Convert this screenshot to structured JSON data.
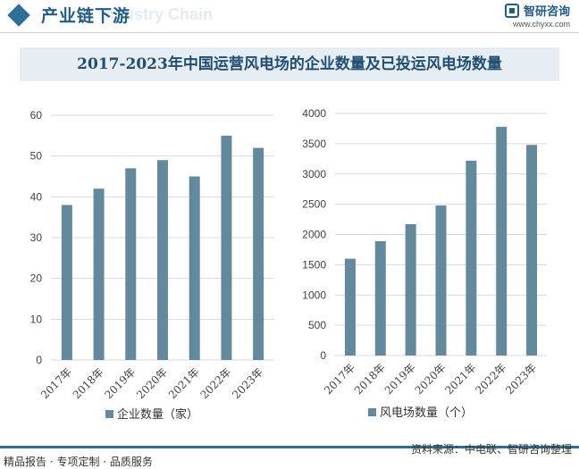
{
  "header": {
    "section_title": "产业链下游",
    "ghost_text": "Industry Chain",
    "brand_name": "智研咨询",
    "brand_url": "www.chyxx.com"
  },
  "chart_title": "2017-2023年中国运营风电场的企业数量及已投运风电场数量",
  "colors": {
    "bar": "#62899c",
    "accent": "#2e6f97",
    "title_bg": "#e6eef4"
  },
  "chart_data": [
    {
      "type": "bar",
      "categories": [
        "2017年",
        "2018年",
        "2019年",
        "2020年",
        "2021年",
        "2022年",
        "2023年"
      ],
      "series": [
        {
          "name": "企业数量（家）",
          "values": [
            38,
            42,
            47,
            49,
            45,
            55,
            52
          ]
        }
      ],
      "ylim": [
        0,
        60
      ],
      "yticks": [
        0,
        10,
        20,
        30,
        40,
        50,
        60
      ],
      "grid": true,
      "legend": "bottom"
    },
    {
      "type": "bar",
      "categories": [
        "2017年",
        "2018年",
        "2019年",
        "2020年",
        "2021年",
        "2022年",
        "2023年"
      ],
      "series": [
        {
          "name": "风电场数量（个）",
          "values": [
            1600,
            1890,
            2170,
            2480,
            3220,
            3780,
            3480
          ]
        }
      ],
      "ylim": [
        0,
        4000
      ],
      "yticks": [
        0,
        500,
        1000,
        1500,
        2000,
        2500,
        3000,
        3500,
        4000
      ],
      "grid": true,
      "legend": "bottom"
    }
  ],
  "footer": {
    "left_text": "精品报告 · 专项定制 · 品质服务",
    "source_text": "资料来源：中电联、智研咨询整理"
  }
}
